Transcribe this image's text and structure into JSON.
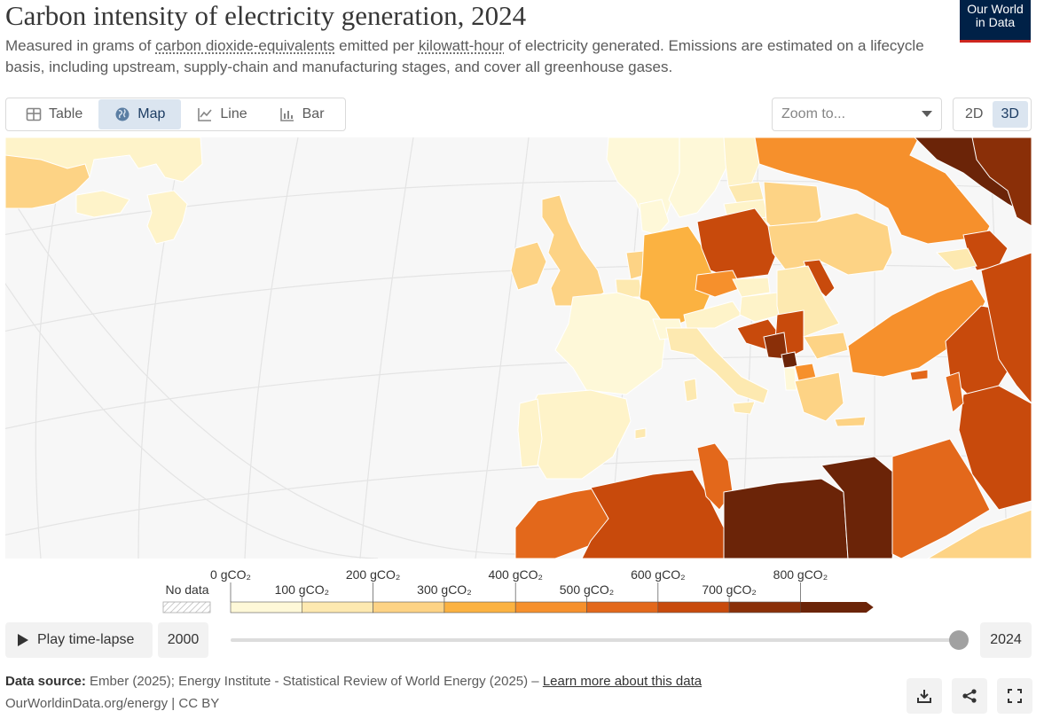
{
  "header": {
    "title": "Carbon intensity of electricity generation, 2024",
    "subtitle_1": "Measured in grams of ",
    "subtitle_link1": "carbon dioxide-equivalents",
    "subtitle_2": " emitted per ",
    "subtitle_link2": "kilowatt-hour",
    "subtitle_3": " of electricity generated. Emissions are estimated on a lifecycle basis, including upstream, supply-chain and manufacturing stages, and cover all greenhouse gases.",
    "logo_line1": "Our World",
    "logo_line2": "in Data"
  },
  "tabs": [
    {
      "label": "Table",
      "icon": "table-icon"
    },
    {
      "label": "Map",
      "icon": "globe-icon",
      "active": true
    },
    {
      "label": "Line",
      "icon": "line-chart-icon"
    },
    {
      "label": "Bar",
      "icon": "bar-chart-icon"
    }
  ],
  "zoom": {
    "placeholder": "Zoom to..."
  },
  "projection": {
    "options": [
      "2D",
      "3D"
    ],
    "selected": "3D"
  },
  "legend": {
    "no_data_label": "No data",
    "bins": [
      {
        "label": "0 gCO₂",
        "value": 0,
        "color": "#fef8d8"
      },
      {
        "label": "100 gCO₂",
        "value": 100,
        "color": "#fde9b0"
      },
      {
        "label": "200 gCO₂",
        "value": 200,
        "color": "#fdd385"
      },
      {
        "label": "300 gCO₂",
        "value": 300,
        "color": "#fbb241"
      },
      {
        "label": "400 gCO₂",
        "value": 400,
        "color": "#f6902c"
      },
      {
        "label": "500 gCO₂",
        "value": 500,
        "color": "#e3681b"
      },
      {
        "label": "600 gCO₂",
        "value": 600,
        "color": "#c84a0c"
      },
      {
        "label": "700 gCO₂",
        "value": 700,
        "color": "#8a2f08"
      },
      {
        "label": "800 gCO₂",
        "value": 800,
        "color": "#6b2408"
      }
    ],
    "colors": [
      "#fef8d8",
      "#fde9b0",
      "#fdd385",
      "#fbb241",
      "#f6902c",
      "#e3681b",
      "#c84a0c",
      "#8a2f08",
      "#6b2408"
    ]
  },
  "timeline": {
    "play_label": "Play time-lapse",
    "start_year": "2000",
    "end_year": "2024"
  },
  "footer": {
    "source_label": "Data source:",
    "source_text": " Ember (2025); Energy Institute - Statistical Review of World Energy (2025) – ",
    "learn_more": "Learn more about this data",
    "credit": "OurWorldinData.org/energy | CC BY"
  },
  "colors": {
    "background": "#f7f7f7",
    "border": "#dadada",
    "accent": "#dbe5f0",
    "logo_bg": "#002147",
    "logo_accent": "#ce261e"
  }
}
